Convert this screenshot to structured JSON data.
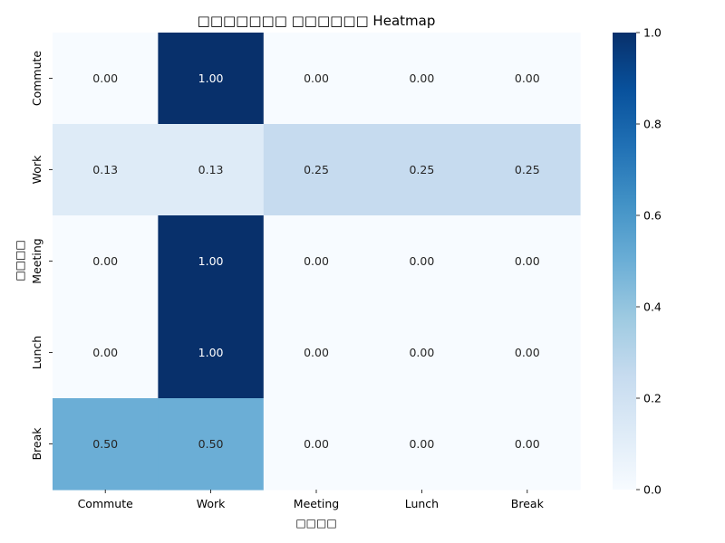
{
  "chart_data": {
    "type": "heatmap",
    "title": "□□□□□□□ □□□□□□ Heatmap",
    "xlabel": "□□□□",
    "ylabel": "□□□□",
    "x_categories": [
      "Commute",
      "Work",
      "Meeting",
      "Lunch",
      "Break"
    ],
    "y_categories": [
      "Commute",
      "Work",
      "Meeting",
      "Lunch",
      "Break"
    ],
    "values": [
      [
        0.0,
        1.0,
        0.0,
        0.0,
        0.0
      ],
      [
        0.125,
        0.125,
        0.25,
        0.25,
        0.25
      ],
      [
        0.0,
        1.0,
        0.0,
        0.0,
        0.0
      ],
      [
        0.0,
        1.0,
        0.0,
        0.0,
        0.0
      ],
      [
        0.5,
        0.5,
        0.0,
        0.0,
        0.0
      ]
    ],
    "annotation_format": "2 decimals",
    "colormap": "Blues",
    "colorbar": {
      "range": [
        0.0,
        1.0
      ],
      "ticks": [
        "0.0",
        "0.2",
        "0.4",
        "0.6",
        "0.8",
        "1.0"
      ],
      "placement": "right"
    },
    "grid": false
  }
}
